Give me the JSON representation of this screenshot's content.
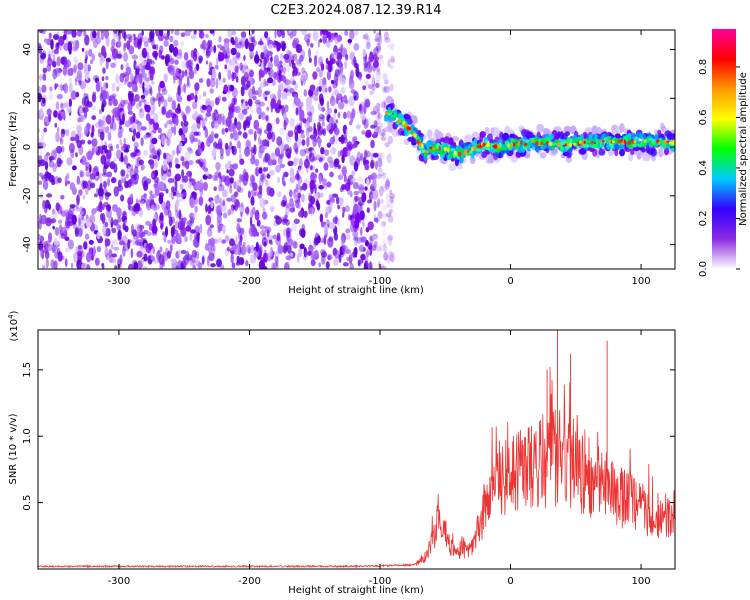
{
  "figure": {
    "title": "C2E3.2024.087.12.39.R14"
  },
  "chart_data": [
    {
      "type": "heatmap",
      "xlabel": "Height of straight line (km)",
      "ylabel": "Frequency (Hz)",
      "xlim": [
        -362,
        126
      ],
      "ylim": [
        -50,
        48
      ],
      "x_ticks": [
        -300,
        -200,
        -100,
        0,
        100
      ],
      "y_ticks": [
        -40,
        -20,
        0,
        20,
        40
      ],
      "colorbar": {
        "label": "Normalized spectral amplitude",
        "range": [
          0,
          0.95
        ],
        "ticks": [
          0.0,
          0.2,
          0.4,
          0.6,
          0.8
        ],
        "colormap": [
          "#ffffff",
          "#8a2be2",
          "#3300ff",
          "#00ccff",
          "#00ff00",
          "#ffff00",
          "#ff9900",
          "#ff0000",
          "#ff0099"
        ]
      },
      "noise_region_x": [
        -362,
        -90
      ],
      "signal_trace": [
        {
          "x": -95,
          "f": 14
        },
        {
          "x": -85,
          "f": 11
        },
        {
          "x": -75,
          "f": 6
        },
        {
          "x": -70,
          "f": 2
        },
        {
          "x": -65,
          "f": -2
        },
        {
          "x": -60,
          "f": 0
        },
        {
          "x": -50,
          "f": -1
        },
        {
          "x": -40,
          "f": -3
        },
        {
          "x": -30,
          "f": -1
        },
        {
          "x": -20,
          "f": 1
        },
        {
          "x": -10,
          "f": 0
        },
        {
          "x": 0,
          "f": 1
        },
        {
          "x": 20,
          "f": 2
        },
        {
          "x": 40,
          "f": 1
        },
        {
          "x": 60,
          "f": 2
        },
        {
          "x": 80,
          "f": 2
        },
        {
          "x": 100,
          "f": 2
        },
        {
          "x": 126,
          "f": 2
        }
      ]
    },
    {
      "type": "line",
      "xlabel": "Height of straight line (km)",
      "ylabel": "SNR (10 * v/v)",
      "y_exponent_label": "(x10",
      "y_exponent_sup": "4",
      "y_exponent_close": ")",
      "xlim": [
        -362,
        126
      ],
      "ylim": [
        0,
        1.8
      ],
      "x_ticks": [
        -300,
        -200,
        -100,
        0,
        100
      ],
      "y_ticks": [
        0.5,
        1.0,
        1.5
      ],
      "y_tick_labels": [
        "0.5",
        "1.0",
        "1.5"
      ],
      "color": "#ee3333",
      "envelope": [
        {
          "x": -362,
          "y": 0.02
        },
        {
          "x": -120,
          "y": 0.02
        },
        {
          "x": -75,
          "y": 0.03
        },
        {
          "x": -65,
          "y": 0.1
        },
        {
          "x": -55,
          "y": 0.45
        },
        {
          "x": -48,
          "y": 0.25
        },
        {
          "x": -40,
          "y": 0.15
        },
        {
          "x": -30,
          "y": 0.2
        },
        {
          "x": -20,
          "y": 0.55
        },
        {
          "x": -10,
          "y": 0.8
        },
        {
          "x": 0,
          "y": 0.85
        },
        {
          "x": 10,
          "y": 0.9
        },
        {
          "x": 20,
          "y": 0.95
        },
        {
          "x": 30,
          "y": 1.0
        },
        {
          "x": 40,
          "y": 1.0
        },
        {
          "x": 50,
          "y": 0.95
        },
        {
          "x": 60,
          "y": 0.85
        },
        {
          "x": 70,
          "y": 0.75
        },
        {
          "x": 80,
          "y": 0.68
        },
        {
          "x": 90,
          "y": 0.62
        },
        {
          "x": 100,
          "y": 0.55
        },
        {
          "x": 110,
          "y": 0.5
        },
        {
          "x": 126,
          "y": 0.45
        }
      ],
      "peaks": [
        {
          "x": 36,
          "y": 1.8
        },
        {
          "x": 74,
          "y": 1.72
        },
        {
          "x": 46,
          "y": 1.62
        },
        {
          "x": 28,
          "y": 1.5
        }
      ]
    }
  ]
}
